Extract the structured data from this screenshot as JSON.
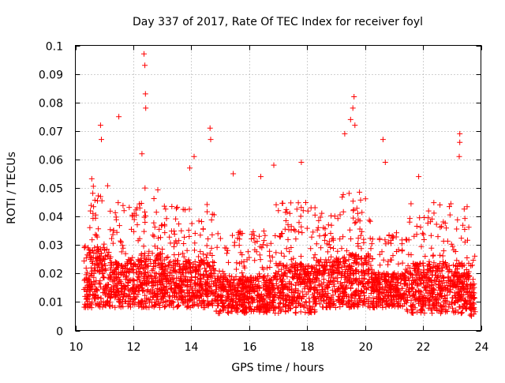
{
  "chart_data": {
    "type": "scatter",
    "title": "Day 337 of 2017, Rate Of TEC Index for receiver foyl",
    "xlabel": "GPS time / hours",
    "ylabel": "ROTI / TECUs",
    "xlim": [
      10,
      24
    ],
    "ylim": [
      0,
      0.1
    ],
    "xticks": [
      10,
      12,
      14,
      16,
      18,
      20,
      22,
      24
    ],
    "xtick_labels": [
      "10",
      "12",
      "14",
      "16",
      "18",
      "20",
      "22",
      "24"
    ],
    "yticks": [
      0,
      0.01,
      0.02,
      0.03,
      0.04,
      0.05,
      0.06,
      0.07,
      0.08,
      0.09,
      0.1
    ],
    "ytick_labels": [
      "0",
      "0.01",
      "0.02",
      "0.03",
      "0.04",
      "0.05",
      "0.06",
      "0.07",
      "0.08",
      "0.09",
      "0.1"
    ],
    "grid": true,
    "marker": "+",
    "color": "#ff0000",
    "x_range_of_data": [
      10.3,
      23.8
    ],
    "notable_points": [
      {
        "x": 12.37,
        "y": 0.097
      },
      {
        "x": 12.4,
        "y": 0.093
      },
      {
        "x": 12.42,
        "y": 0.083
      },
      {
        "x": 12.43,
        "y": 0.078
      },
      {
        "x": 19.62,
        "y": 0.082
      },
      {
        "x": 19.58,
        "y": 0.078
      },
      {
        "x": 19.5,
        "y": 0.074
      },
      {
        "x": 10.87,
        "y": 0.072
      },
      {
        "x": 10.9,
        "y": 0.067
      },
      {
        "x": 11.5,
        "y": 0.075
      },
      {
        "x": 14.65,
        "y": 0.071
      },
      {
        "x": 14.67,
        "y": 0.067
      },
      {
        "x": 20.62,
        "y": 0.067
      },
      {
        "x": 23.27,
        "y": 0.069
      },
      {
        "x": 23.27,
        "y": 0.066
      },
      {
        "x": 23.25,
        "y": 0.061
      },
      {
        "x": 19.3,
        "y": 0.069
      },
      {
        "x": 19.65,
        "y": 0.072
      },
      {
        "x": 12.3,
        "y": 0.062
      },
      {
        "x": 14.1,
        "y": 0.061
      },
      {
        "x": 13.95,
        "y": 0.057
      },
      {
        "x": 17.8,
        "y": 0.059
      },
      {
        "x": 16.85,
        "y": 0.058
      },
      {
        "x": 21.85,
        "y": 0.054
      },
      {
        "x": 15.45,
        "y": 0.055
      },
      {
        "x": 16.4,
        "y": 0.054
      },
      {
        "x": 20.7,
        "y": 0.059
      }
    ],
    "bulk_density": [
      {
        "x0": 10.3,
        "x1": 10.5,
        "ymin": 0.008,
        "ymax": 0.03
      },
      {
        "x0": 10.5,
        "x1": 11.2,
        "ymin": 0.008,
        "ymax": 0.055
      },
      {
        "x0": 11.2,
        "x1": 12.3,
        "ymin": 0.008,
        "ymax": 0.045
      },
      {
        "x0": 12.3,
        "x1": 13.0,
        "ymin": 0.008,
        "ymax": 0.05
      },
      {
        "x0": 13.0,
        "x1": 14.8,
        "ymin": 0.008,
        "ymax": 0.045
      },
      {
        "x0": 14.8,
        "x1": 16.9,
        "ymin": 0.006,
        "ymax": 0.035
      },
      {
        "x0": 16.9,
        "x1": 18.3,
        "ymin": 0.006,
        "ymax": 0.045
      },
      {
        "x0": 18.3,
        "x1": 19.2,
        "ymin": 0.008,
        "ymax": 0.045
      },
      {
        "x0": 19.2,
        "x1": 20.2,
        "ymin": 0.008,
        "ymax": 0.05
      },
      {
        "x0": 20.2,
        "x1": 21.4,
        "ymin": 0.008,
        "ymax": 0.035
      },
      {
        "x0": 21.4,
        "x1": 23.6,
        "ymin": 0.006,
        "ymax": 0.045
      },
      {
        "x0": 23.6,
        "x1": 23.8,
        "ymin": 0.005,
        "ymax": 0.03
      }
    ]
  }
}
